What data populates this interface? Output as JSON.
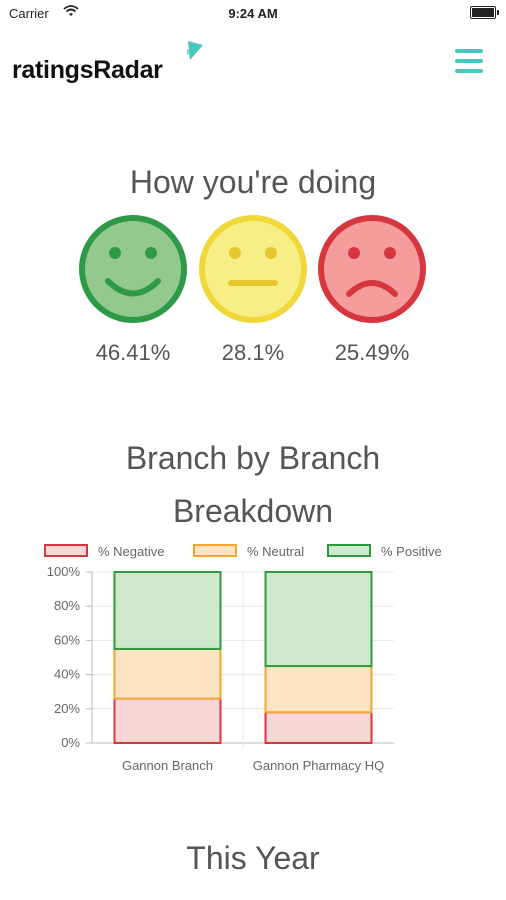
{
  "status_bar": {
    "carrier": "Carrier",
    "time": "9:24 AM"
  },
  "header": {
    "logo_text": "ratingsRadar",
    "menu_icon": "hamburger-menu-icon",
    "accent_color": "#46c8bf"
  },
  "summary": {
    "title": "How you're doing",
    "faces": [
      {
        "name": "positive",
        "icon": "smiley-face-icon",
        "percent": "46.41%",
        "fill": "#93c98f",
        "stroke": "#2e9a48"
      },
      {
        "name": "neutral",
        "icon": "neutral-face-icon",
        "percent": "28.1%",
        "fill": "#f8ee86",
        "stroke": "#f0d83a"
      },
      {
        "name": "negative",
        "icon": "sad-face-icon",
        "percent": "25.49%",
        "fill": "#f59c9c",
        "stroke": "#d6373f"
      }
    ]
  },
  "breakdown": {
    "title": "Branch by Branch Breakdown"
  },
  "chart_data": {
    "type": "bar",
    "stacked": true,
    "categories": [
      "Gannon Branch",
      "Gannon Pharmacy HQ"
    ],
    "series": [
      {
        "name": "% Negative",
        "values": [
          26,
          18
        ],
        "fill": "#f7d6d6",
        "stroke": "#d9363e"
      },
      {
        "name": "% Neutral",
        "values": [
          29,
          27
        ],
        "fill": "#fde5c4",
        "stroke": "#f5a431"
      },
      {
        "name": "% Positive",
        "values": [
          45,
          55
        ],
        "fill": "#cfe7cc",
        "stroke": "#2d9a3b"
      }
    ],
    "y_ticks": [
      "0%",
      "20%",
      "40%",
      "60%",
      "80%",
      "100%"
    ],
    "ylim": [
      0,
      100
    ],
    "grid": true,
    "legend_position": "top"
  },
  "year": {
    "title": "This Year"
  }
}
